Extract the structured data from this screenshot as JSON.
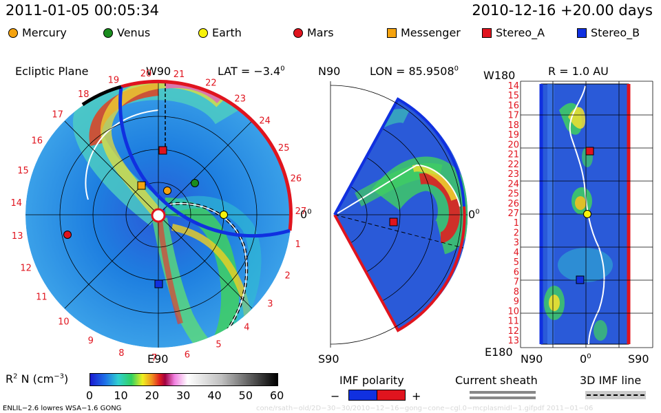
{
  "header": {
    "datetime": "2011-01-05 00:05:34",
    "run": "2010-12-16 +20.00 days"
  },
  "legend": [
    {
      "label": "Mercury",
      "shape": "dot",
      "color": "#f5a30f"
    },
    {
      "label": "Venus",
      "shape": "dot",
      "color": "#1a8c1e"
    },
    {
      "label": "Earth",
      "shape": "dot",
      "color": "#f7f20a"
    },
    {
      "label": "Mars",
      "shape": "dot",
      "color": "#e0141e"
    },
    {
      "label": "Messenger",
      "shape": "square",
      "color": "#f5a30f"
    },
    {
      "label": "Stereo_A",
      "shape": "square",
      "color": "#e0141e"
    },
    {
      "label": "Stereo_B",
      "shape": "square",
      "color": "#1030e0"
    }
  ],
  "panels": {
    "ecliptic": {
      "title": "Ecliptic Plane",
      "top": "W90",
      "bottom": "E90",
      "right": "0",
      "lat": "LAT = −3.4",
      "lat_sup": "0"
    },
    "meridional": {
      "top": "N90",
      "bottom": "S90",
      "right": "0",
      "lon": "LON = 85.9508",
      "lon_sup": "0"
    },
    "radial": {
      "r": "R = 1.0 AU",
      "top_left": "W180",
      "bottom_left": "E180",
      "xlabels": [
        "N90",
        "0",
        "S90"
      ]
    }
  },
  "ecliptic_ticks": [
    "20",
    "21",
    "22",
    "23",
    "24",
    "25",
    "26",
    "27",
    "1",
    "2",
    "3",
    "4",
    "5",
    "6",
    "7",
    "8",
    "9",
    "10",
    "11",
    "12",
    "13",
    "14",
    "15",
    "16",
    "17",
    "18",
    "19"
  ],
  "radial_ticks": [
    "14",
    "15",
    "16",
    "17",
    "18",
    "19",
    "20",
    "21",
    "22",
    "23",
    "24",
    "25",
    "26",
    "27",
    "1",
    "2",
    "3",
    "4",
    "5",
    "6",
    "7",
    "8",
    "9",
    "10",
    "11",
    "12",
    "13"
  ],
  "colorbar": {
    "label": "R",
    "label_sup": "2",
    "label_rest": " N (cm",
    "label_exp": "−3",
    "label_end": ")",
    "ticks": [
      "0",
      "10",
      "20",
      "30",
      "40",
      "50",
      "60"
    ]
  },
  "bottom_legends": {
    "imf": "IMF polarity",
    "minus": "−",
    "plus": "+",
    "sheath": "Current sheath",
    "imf3d": "3D IMF line"
  },
  "credit": "ENLIL−2.6 lowres WSA−1.6 GONG",
  "filepath": "cone/rsath−old/2D−30−30/2010−12−16−gong−cone−cgl.0−mcplasmidl−1.gifpdf   2011−01−06"
}
